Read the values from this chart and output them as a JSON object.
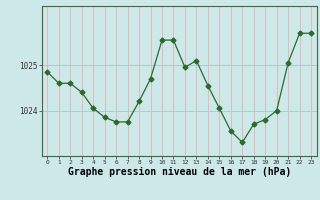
{
  "x": [
    0,
    1,
    2,
    3,
    4,
    5,
    6,
    7,
    8,
    9,
    10,
    11,
    12,
    13,
    14,
    15,
    16,
    17,
    18,
    19,
    20,
    21,
    22,
    23
  ],
  "y": [
    1024.85,
    1024.6,
    1024.6,
    1024.4,
    1024.05,
    1023.85,
    1023.75,
    1023.75,
    1024.2,
    1024.7,
    1025.55,
    1025.55,
    1024.95,
    1025.1,
    1024.55,
    1024.05,
    1023.55,
    1023.3,
    1023.7,
    1023.8,
    1024.0,
    1025.05,
    1025.7,
    1025.7
  ],
  "line_color": "#2d6a2d",
  "marker": "D",
  "marker_size": 2.5,
  "bg_color": "#cce8e8",
  "vgrid_color": "#e8b0b0",
  "hgrid_color": "#aacccc",
  "xlabel": "Graphe pression niveau de la mer (hPa)",
  "xlabel_fontsize": 7.0,
  "ylim": [
    1023.0,
    1026.3
  ],
  "xlim": [
    -0.5,
    23.5
  ]
}
